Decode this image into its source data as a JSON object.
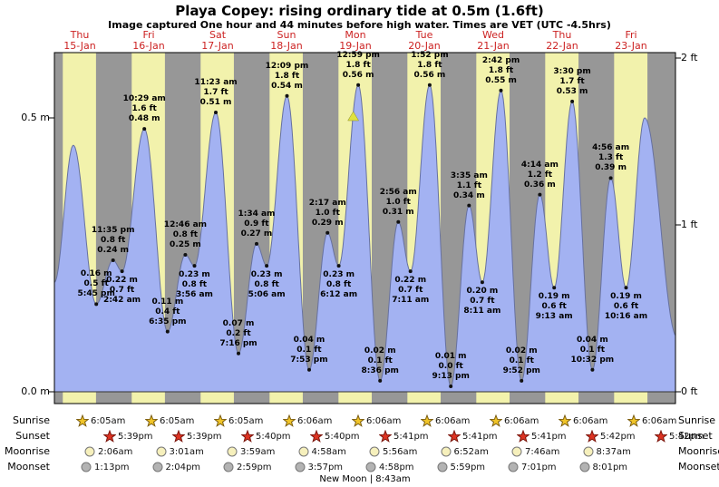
{
  "chart_data": {
    "type": "area",
    "title": "Playa Copey: rising  ordinary tide at 0.5m (1.6ft)",
    "subtitle": "Image captured One hour and 44 minutes before high water. Times are VET (UTC -4.5hrs)",
    "ylim_m": [
      0.0,
      0.64
    ],
    "axis": {
      "left_labels": [
        "0.5 m",
        "0.0 m"
      ],
      "right_labels": [
        "2 ft",
        "1 ft",
        "0 ft"
      ]
    },
    "days": [
      {
        "dow": "Thu",
        "date": "15-Jan"
      },
      {
        "dow": "Fri",
        "date": "16-Jan"
      },
      {
        "dow": "Sat",
        "date": "17-Jan"
      },
      {
        "dow": "Sun",
        "date": "18-Jan"
      },
      {
        "dow": "Mon",
        "date": "19-Jan"
      },
      {
        "dow": "Tue",
        "date": "20-Jan"
      },
      {
        "dow": "Wed",
        "date": "21-Jan"
      },
      {
        "dow": "Thu",
        "date": "22-Jan"
      },
      {
        "dow": "Fri",
        "date": "23-Jan"
      }
    ],
    "extremes": [
      {
        "type": "low",
        "day": 0,
        "time": "3:10 am",
        "m": "0.20",
        "labeled": false
      },
      {
        "type": "high",
        "day": 0,
        "time": "9:45 am",
        "m": "0.45",
        "labeled": false
      },
      {
        "type": "low",
        "day": 0,
        "time": "5:45 pm",
        "m": "0.16",
        "ft": "0.5",
        "labeled": true
      },
      {
        "type": "high",
        "day": 0,
        "time": "11:35 pm",
        "m": "0.24",
        "ft": "0.8",
        "labeled": true
      },
      {
        "type": "low",
        "day": 1,
        "time": "2:42 am",
        "m": "0.22",
        "ft": "0.7",
        "labeled": true
      },
      {
        "type": "high",
        "day": 1,
        "time": "10:29 am",
        "m": "0.48",
        "ft": "1.6",
        "labeled": true
      },
      {
        "type": "low",
        "day": 1,
        "time": "6:35 pm",
        "m": "0.11",
        "ft": "0.4",
        "labeled": true
      },
      {
        "type": "high",
        "day": 2,
        "time": "12:46 am",
        "m": "0.25",
        "ft": "0.8",
        "labeled": true
      },
      {
        "type": "low",
        "day": 2,
        "time": "3:56 am",
        "m": "0.23",
        "ft": "0.8",
        "labeled": true
      },
      {
        "type": "high",
        "day": 2,
        "time": "11:23 am",
        "m": "0.51",
        "ft": "1.7",
        "labeled": true
      },
      {
        "type": "low",
        "day": 2,
        "time": "7:16 pm",
        "m": "0.07",
        "ft": "0.2",
        "labeled": true
      },
      {
        "type": "high",
        "day": 3,
        "time": "1:34 am",
        "m": "0.27",
        "ft": "0.9",
        "labeled": true
      },
      {
        "type": "low",
        "day": 3,
        "time": "5:06 am",
        "m": "0.23",
        "ft": "0.8",
        "labeled": true
      },
      {
        "type": "high",
        "day": 3,
        "time": "12:09 pm",
        "m": "0.54",
        "ft": "1.8",
        "labeled": true
      },
      {
        "type": "low",
        "day": 3,
        "time": "7:53 pm",
        "m": "0.04",
        "ft": "0.1",
        "labeled": true
      },
      {
        "type": "high",
        "day": 4,
        "time": "2:17 am",
        "m": "0.29",
        "ft": "1.0",
        "labeled": true
      },
      {
        "type": "low",
        "day": 4,
        "time": "6:12 am",
        "m": "0.23",
        "ft": "0.8",
        "labeled": true
      },
      {
        "type": "high",
        "day": 4,
        "time": "12:59 pm",
        "m": "0.56",
        "ft": "1.8",
        "labeled": true
      },
      {
        "type": "low",
        "day": 4,
        "time": "8:36 pm",
        "m": "0.02",
        "ft": "0.1",
        "labeled": true
      },
      {
        "type": "high",
        "day": 5,
        "time": "2:56 am",
        "m": "0.31",
        "ft": "1.0",
        "labeled": true
      },
      {
        "type": "low",
        "day": 5,
        "time": "7:11 am",
        "m": "0.22",
        "ft": "0.7",
        "labeled": true
      },
      {
        "type": "high",
        "day": 5,
        "time": "1:52 pm",
        "m": "0.56",
        "ft": "1.8",
        "labeled": true
      },
      {
        "type": "low",
        "day": 5,
        "time": "9:13 pm",
        "m": "0.01",
        "ft": "0.0",
        "labeled": true
      },
      {
        "type": "high",
        "day": 6,
        "time": "3:35 am",
        "m": "0.34",
        "ft": "1.1",
        "labeled": true
      },
      {
        "type": "low",
        "day": 6,
        "time": "8:11 am",
        "m": "0.20",
        "ft": "0.7",
        "labeled": true
      },
      {
        "type": "high",
        "day": 6,
        "time": "2:42 pm",
        "m": "0.55",
        "ft": "1.8",
        "labeled": true
      },
      {
        "type": "low",
        "day": 6,
        "time": "9:52 pm",
        "m": "0.02",
        "ft": "0.1",
        "labeled": true
      },
      {
        "type": "high",
        "day": 7,
        "time": "4:14 am",
        "m": "0.36",
        "ft": "1.2",
        "labeled": true
      },
      {
        "type": "low",
        "day": 7,
        "time": "9:13 am",
        "m": "0.19",
        "ft": "0.6",
        "labeled": true
      },
      {
        "type": "high",
        "day": 7,
        "time": "3:30 pm",
        "m": "0.53",
        "ft": "1.7",
        "labeled": true
      },
      {
        "type": "low",
        "day": 7,
        "time": "10:32 pm",
        "m": "0.04",
        "ft": "0.1",
        "labeled": true
      },
      {
        "type": "high",
        "day": 8,
        "time": "4:56 am",
        "m": "0.39",
        "ft": "1.3",
        "labeled": true
      },
      {
        "type": "low",
        "day": 8,
        "time": "10:16 am",
        "m": "0.19",
        "ft": "0.6",
        "labeled": true
      },
      {
        "type": "high",
        "day": 8,
        "time": "4:45 pm",
        "m": "0.50",
        "labeled": false
      },
      {
        "type": "low",
        "day": 9,
        "time": "4:00 am",
        "m": "0.10",
        "labeled": false
      }
    ],
    "current_marker": {
      "day": 4,
      "time": "11:15 am",
      "m": "0.50",
      "shape": "yellow-triangle"
    },
    "colors": {
      "day": "#f2f2ac",
      "night": "#979797",
      "fill": "#a3b2f2",
      "stroke": "#67719f",
      "marker": "#dfe23e",
      "day_label": "#cc2222"
    }
  },
  "astro": {
    "rows": [
      {
        "key": "sunrise",
        "label": "Sunrise",
        "times": [
          "6:05am",
          "6:05am",
          "6:05am",
          "6:06am",
          "6:06am",
          "6:06am",
          "6:06am",
          "6:06am",
          "6:06am"
        ]
      },
      {
        "key": "sunset",
        "label": "Sunset",
        "times": [
          "5:39pm",
          "5:39pm",
          "5:40pm",
          "5:40pm",
          "5:41pm",
          "5:41pm",
          "5:41pm",
          "5:42pm",
          "5:42pm"
        ]
      },
      {
        "key": "moonrise",
        "label": "Moonrise",
        "times": [
          "2:06am",
          "3:01am",
          "3:59am",
          "4:58am",
          "5:56am",
          "6:52am",
          "7:46am",
          "8:37am"
        ]
      },
      {
        "key": "moonset",
        "label": "Moonset",
        "times": [
          "1:13pm",
          "2:04pm",
          "2:59pm",
          "3:57pm",
          "4:58pm",
          "5:59pm",
          "7:01pm",
          "8:01pm"
        ]
      }
    ],
    "note": "New Moon | 8:43am"
  }
}
